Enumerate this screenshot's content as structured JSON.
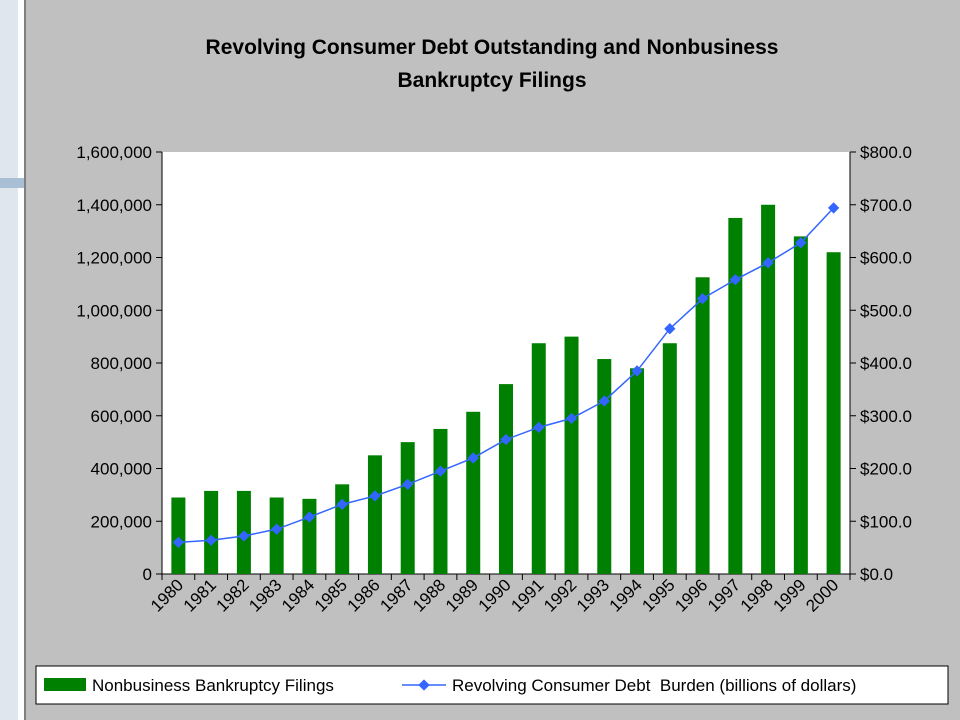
{
  "chart_data": {
    "type": "bar+line",
    "title_line1": "Revolving Consumer Debt Outstanding and Nonbusiness",
    "title_line2": "Bankruptcy Filings",
    "categories": [
      "1980",
      "1981",
      "1982",
      "1983",
      "1984",
      "1985",
      "1986",
      "1987",
      "1988",
      "1989",
      "1990",
      "1991",
      "1992",
      "1993",
      "1994",
      "1995",
      "1996",
      "1997",
      "1998",
      "1999",
      "2000"
    ],
    "series": [
      {
        "name": "Nonbusiness Bankruptcy Filings",
        "type": "bar",
        "axis": "left",
        "color": "#008000",
        "values": [
          290000,
          315000,
          315000,
          290000,
          285000,
          340000,
          450000,
          500000,
          550000,
          615000,
          720000,
          875000,
          900000,
          815000,
          780000,
          875000,
          1125000,
          1350000,
          1400000,
          1280000,
          1220000
        ]
      },
      {
        "name": "Revolving Consumer Debt  Burden (billions of dollars)",
        "type": "line",
        "axis": "right",
        "color": "#3366ff",
        "values": [
          60,
          64,
          72,
          85,
          108,
          132,
          148,
          170,
          195,
          220,
          255,
          278,
          295,
          328,
          385,
          465,
          522,
          558,
          590,
          628,
          694
        ]
      }
    ],
    "y_left": {
      "min": 0,
      "max": 1600000,
      "ticks": [
        "0",
        "200,000",
        "400,000",
        "600,000",
        "800,000",
        "1,000,000",
        "1,200,000",
        "1,400,000",
        "1,600,000"
      ]
    },
    "y_right": {
      "min": 0,
      "max": 800,
      "ticks": [
        "$0.0",
        "$100.0",
        "$200.0",
        "$300.0",
        "$400.0",
        "$500.0",
        "$600.0",
        "$700.0",
        "$800.0"
      ]
    },
    "grid": false,
    "legend_position": "bottom"
  }
}
